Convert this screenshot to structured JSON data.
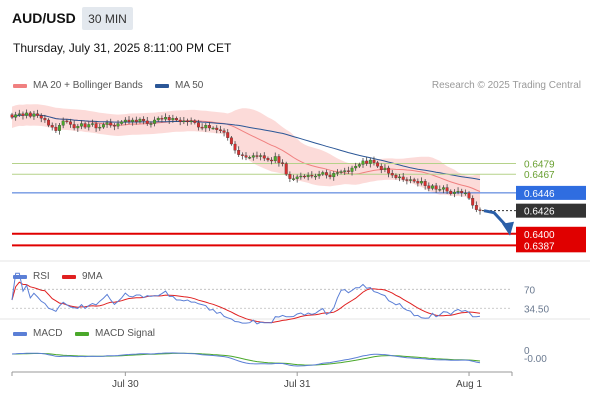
{
  "header": {
    "pair": "AUD/USD",
    "timeframe": "30 MIN",
    "datetime": "Thursday, July 31, 2025 8:11:00 PM CET",
    "credit": "Research © 2025 Trading Central"
  },
  "legend": {
    "main": [
      {
        "label": "MA 20 + Bollinger Bands",
        "color": "#f08080"
      },
      {
        "label": "MA 50",
        "color": "#2b5797"
      }
    ],
    "rsi": [
      {
        "label": "RSI",
        "color": "#5b7fd6"
      },
      {
        "label": "9MA",
        "color": "#e02020"
      }
    ],
    "macd": [
      {
        "label": "MACD",
        "color": "#5b7fd6"
      },
      {
        "label": "MACD Signal",
        "color": "#4aa82a"
      }
    ]
  },
  "chart_data": {
    "type": "candlestick",
    "ylim": [
      0.6375,
      0.6555
    ],
    "x_ticks": [
      {
        "label": "Jul 30",
        "index": 31
      },
      {
        "label": "Jul 31",
        "index": 78
      },
      {
        "label": "Aug 1",
        "index": 125
      }
    ],
    "candles_close": [
      0.6531,
      0.6534,
      0.6535,
      0.6533,
      0.6536,
      0.6532,
      0.6535,
      0.6533,
      0.653,
      0.6528,
      0.6522,
      0.652,
      0.6516,
      0.6522,
      0.6527,
      0.6526,
      0.6523,
      0.6519,
      0.6521,
      0.6524,
      0.652,
      0.6523,
      0.6524,
      0.6519,
      0.652,
      0.6523,
      0.6525,
      0.6522,
      0.6521,
      0.6524,
      0.6526,
      0.6528,
      0.6526,
      0.6528,
      0.6526,
      0.6529,
      0.6527,
      0.6524,
      0.6524,
      0.6528,
      0.653,
      0.6529,
      0.6531,
      0.6528,
      0.653,
      0.6528,
      0.6526,
      0.6527,
      0.6526,
      0.6527,
      0.6525,
      0.652,
      0.6519,
      0.6522,
      0.6519,
      0.6519,
      0.6517,
      0.6516,
      0.6514,
      0.6508,
      0.6501,
      0.6494,
      0.6489,
      0.6488,
      0.6486,
      0.6486,
      0.6488,
      0.6487,
      0.6488,
      0.6485,
      0.6483,
      0.6482,
      0.6487,
      0.648,
      0.6479,
      0.6467,
      0.6462,
      0.6462,
      0.6464,
      0.6465,
      0.6464,
      0.6466,
      0.6465,
      0.6465,
      0.6467,
      0.6469,
      0.6466,
      0.6464,
      0.6468,
      0.6469,
      0.647,
      0.6471,
      0.647,
      0.6474,
      0.6476,
      0.6478,
      0.6482,
      0.6479,
      0.6483,
      0.648,
      0.6476,
      0.6472,
      0.6474,
      0.6468,
      0.6466,
      0.6463,
      0.6464,
      0.6461,
      0.646,
      0.6461,
      0.6459,
      0.6457,
      0.6459,
      0.6454,
      0.6451,
      0.6454,
      0.645,
      0.645,
      0.6452,
      0.6448,
      0.6445,
      0.6447,
      0.6448,
      0.6446,
      0.6446,
      0.644,
      0.6432,
      0.6427,
      0.6426
    ],
    "levels": [
      {
        "value": 0.6479,
        "label": "0.6479",
        "kind": "resistance"
      },
      {
        "value": 0.6467,
        "label": "0.6467",
        "kind": "resistance"
      },
      {
        "value": 0.6446,
        "label": "0.6446",
        "kind": "pivot"
      },
      {
        "value": 0.6426,
        "label": "0.6426",
        "kind": "last"
      },
      {
        "value": 0.64,
        "label": "0.6400",
        "kind": "target"
      },
      {
        "value": 0.6387,
        "label": "0.6387",
        "kind": "target"
      }
    ],
    "rsi_levels": [
      {
        "value": 70,
        "label": "70"
      },
      {
        "value": 34.5,
        "label": "34.50"
      }
    ],
    "macd_levels": [
      {
        "value": 0,
        "label": "0"
      },
      {
        "value": -0.0,
        "label": "-0.00"
      }
    ]
  }
}
